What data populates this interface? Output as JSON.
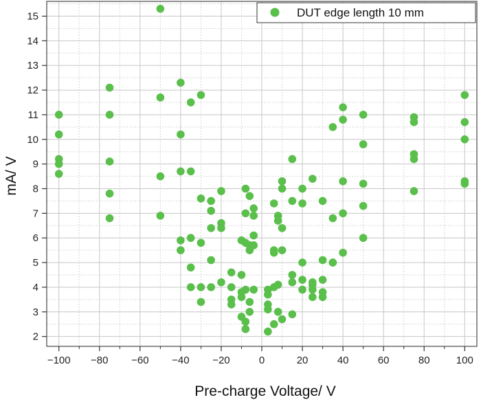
{
  "chart_data": {
    "type": "scatter",
    "xlabel": "Pre-charge Voltage/ V",
    "ylabel": "mA/ V",
    "xlim": [
      -106,
      106
    ],
    "ylim": [
      1.6,
      15.6
    ],
    "x_ticks": [
      -100,
      -80,
      -60,
      -40,
      -20,
      0,
      20,
      40,
      60,
      80,
      100
    ],
    "x_tick_labels": [
      "−100",
      "−80",
      "−60",
      "−40",
      "−20",
      "0",
      "20",
      "40",
      "60",
      "80",
      "100"
    ],
    "y_ticks": [
      2,
      3,
      4,
      5,
      6,
      7,
      8,
      9,
      10,
      11,
      12,
      13,
      14,
      15
    ],
    "y_tick_labels": [
      "2",
      "3",
      "4",
      "5",
      "6",
      "7",
      "8",
      "9",
      "10",
      "11",
      "12",
      "13",
      "14",
      "15"
    ],
    "grid": true,
    "legend_position": "top-right",
    "series": [
      {
        "name": "DUT edge length 10 mm",
        "color": "#5abf4b",
        "points": [
          [
            -100,
            11.0
          ],
          [
            -100,
            10.2
          ],
          [
            -100,
            9.2
          ],
          [
            -100,
            9.0
          ],
          [
            -100,
            8.6
          ],
          [
            -75,
            12.1
          ],
          [
            -75,
            11.0
          ],
          [
            -75,
            9.1
          ],
          [
            -75,
            7.8
          ],
          [
            -75,
            6.8
          ],
          [
            -50,
            15.3
          ],
          [
            -50,
            11.7
          ],
          [
            -50,
            8.5
          ],
          [
            -50,
            6.9
          ],
          [
            -40,
            12.3
          ],
          [
            -40,
            10.2
          ],
          [
            -40,
            8.7
          ],
          [
            -40,
            5.9
          ],
          [
            -40,
            5.5
          ],
          [
            -35,
            11.5
          ],
          [
            -35,
            8.7
          ],
          [
            -35,
            6.0
          ],
          [
            -35,
            4.8
          ],
          [
            -35,
            4.0
          ],
          [
            -30,
            11.8
          ],
          [
            -30,
            7.6
          ],
          [
            -30,
            5.8
          ],
          [
            -30,
            4.0
          ],
          [
            -30,
            3.4
          ],
          [
            -25,
            7.5
          ],
          [
            -25,
            7.1
          ],
          [
            -25,
            6.4
          ],
          [
            -25,
            5.1
          ],
          [
            -25,
            4.0
          ],
          [
            -20,
            7.9
          ],
          [
            -20,
            6.6
          ],
          [
            -20,
            6.4
          ],
          [
            -20,
            4.2
          ],
          [
            -15,
            4.6
          ],
          [
            -15,
            4.0
          ],
          [
            -15,
            3.5
          ],
          [
            -15,
            3.3
          ],
          [
            -10,
            5.9
          ],
          [
            -10,
            4.5
          ],
          [
            -10,
            3.8
          ],
          [
            -10,
            3.6
          ],
          [
            -10,
            2.8
          ],
          [
            -8,
            8.0
          ],
          [
            -8,
            7.0
          ],
          [
            -8,
            5.8
          ],
          [
            -8,
            3.9
          ],
          [
            -8,
            2.6
          ],
          [
            -8,
            2.3
          ],
          [
            -6,
            7.7
          ],
          [
            -6,
            5.7
          ],
          [
            -6,
            5.5
          ],
          [
            -6,
            3.4
          ],
          [
            -6,
            3.0
          ],
          [
            -4,
            7.2
          ],
          [
            -4,
            6.9
          ],
          [
            -4,
            6.1
          ],
          [
            -4,
            5.7
          ],
          [
            -4,
            3.9
          ],
          [
            3,
            3.9
          ],
          [
            3,
            3.7
          ],
          [
            3,
            3.3
          ],
          [
            3,
            3.1
          ],
          [
            3,
            2.2
          ],
          [
            6,
            7.4
          ],
          [
            6,
            5.5
          ],
          [
            6,
            5.4
          ],
          [
            6,
            4.0
          ],
          [
            6,
            2.5
          ],
          [
            8,
            6.9
          ],
          [
            8,
            6.7
          ],
          [
            8,
            4.1
          ],
          [
            8,
            3.0
          ],
          [
            10,
            8.3
          ],
          [
            10,
            8.0
          ],
          [
            10,
            6.4
          ],
          [
            10,
            5.5
          ],
          [
            10,
            2.7
          ],
          [
            15,
            9.2
          ],
          [
            15,
            7.5
          ],
          [
            15,
            4.5
          ],
          [
            15,
            4.2
          ],
          [
            15,
            2.9
          ],
          [
            20,
            8.0
          ],
          [
            20,
            7.4
          ],
          [
            20,
            5.0
          ],
          [
            20,
            4.3
          ],
          [
            20,
            3.9
          ],
          [
            25,
            8.4
          ],
          [
            25,
            4.2
          ],
          [
            25,
            4.1
          ],
          [
            25,
            3.9
          ],
          [
            25,
            3.6
          ],
          [
            30,
            7.5
          ],
          [
            30,
            5.1
          ],
          [
            30,
            4.3
          ],
          [
            30,
            3.8
          ],
          [
            30,
            3.6
          ],
          [
            35,
            10.5
          ],
          [
            35,
            6.8
          ],
          [
            35,
            5.0
          ],
          [
            35,
            5.0
          ],
          [
            40,
            11.3
          ],
          [
            40,
            10.8
          ],
          [
            40,
            8.3
          ],
          [
            40,
            7.0
          ],
          [
            40,
            5.4
          ],
          [
            50,
            11.0
          ],
          [
            50,
            9.8
          ],
          [
            50,
            8.2
          ],
          [
            50,
            7.3
          ],
          [
            50,
            6.0
          ],
          [
            75,
            10.9
          ],
          [
            75,
            10.7
          ],
          [
            75,
            9.4
          ],
          [
            75,
            9.2
          ],
          [
            75,
            7.9
          ],
          [
            100,
            11.8
          ],
          [
            100,
            10.7
          ],
          [
            100,
            10.0
          ],
          [
            100,
            8.3
          ],
          [
            100,
            8.2
          ]
        ]
      }
    ]
  }
}
